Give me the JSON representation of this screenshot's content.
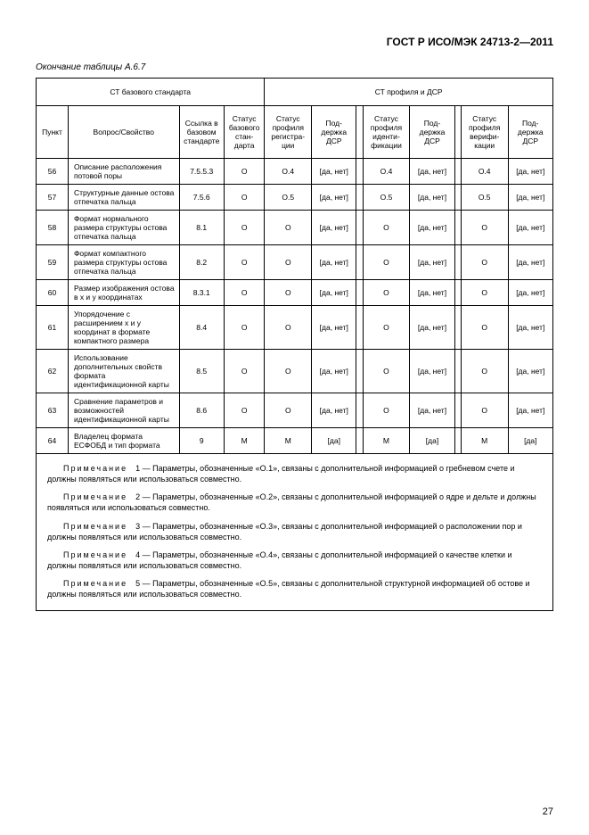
{
  "doc_title": "ГОСТ Р ИСО/МЭК 24713-2—2011",
  "caption": "Окончание таблицы А.6.7",
  "header_group_left": "СТ базового стандарта",
  "header_group_right": "СТ профиля и ДСР",
  "head": {
    "pt": "Пункт",
    "q": "Вопрос/Свойство",
    "ref": "Ссылка в базовом стан­дарте",
    "st": "Статус базо­вого стан­дарта",
    "p1": "Статус профиля регистра­ции",
    "p2": "Под­держка ДСР",
    "p3": "Статус профиля иденти­фикации",
    "p4": "Под­держка ДСР",
    "p5": "Статус профиля верифи­кации",
    "p6": "Под­держка ДСР"
  },
  "rows": [
    {
      "n": "56",
      "q": "Описание расположения потовой поры",
      "ref": "7.5.5.3",
      "st": "О",
      "p1": "О.4",
      "p2": "[да, нет]",
      "p3": "О.4",
      "p4": "[да, нет]",
      "p5": "О.4",
      "p6": "[да, нет]"
    },
    {
      "n": "57",
      "q": "Структурные данные остова отпечатка пальца",
      "ref": "7.5.6",
      "st": "О",
      "p1": "О.5",
      "p2": "[да, нет]",
      "p3": "О.5",
      "p4": "[да, нет]",
      "p5": "О.5",
      "p6": "[да, нет]"
    },
    {
      "n": "58",
      "q": "Формат нормального размера структуры остова отпечатка пальца",
      "ref": "8.1",
      "st": "О",
      "p1": "О",
      "p2": "[да, нет]",
      "p3": "О",
      "p4": "[да, нет]",
      "p5": "О",
      "p6": "[да, нет]"
    },
    {
      "n": "59",
      "q": "Формат компактного размера структуры остова отпечатка пальца",
      "ref": "8.2",
      "st": "О",
      "p1": "О",
      "p2": "[да, нет]",
      "p3": "О",
      "p4": "[да, нет]",
      "p5": "О",
      "p6": "[да, нет]"
    },
    {
      "n": "60",
      "q": "Размер изображения остова в x и y координатах",
      "ref": "8.3.1",
      "st": "О",
      "p1": "О",
      "p2": "[да, нет]",
      "p3": "О",
      "p4": "[да, нет]",
      "p5": "О",
      "p6": "[да, нет]"
    },
    {
      "n": "61",
      "q": "Упорядочение с расширением x и y координат в формате компактного размера",
      "ref": "8.4",
      "st": "О",
      "p1": "О",
      "p2": "[да, нет]",
      "p3": "О",
      "p4": "[да, нет]",
      "p5": "О",
      "p6": "[да, нет]"
    },
    {
      "n": "62",
      "q": "Использование дополнительных свойств формата идентификационной карты",
      "ref": "8.5",
      "st": "О",
      "p1": "О",
      "p2": "[да, нет]",
      "p3": "О",
      "p4": "[да, нет]",
      "p5": "О",
      "p6": "[да, нет]"
    },
    {
      "n": "63",
      "q": "Сравнение параметров и возможностей идентификационной карты",
      "ref": "8.6",
      "st": "О",
      "p1": "О",
      "p2": "[да, нет]",
      "p3": "О",
      "p4": "[да, нет]",
      "p5": "О",
      "p6": "[да, нет]"
    },
    {
      "n": "64",
      "q": "Владелец формата ЕСФОБД и тип формата",
      "ref": "9",
      "st": "М",
      "p1": "М",
      "p2": "[да]",
      "p3": "М",
      "p4": "[да]",
      "p5": "М",
      "p6": "[да]"
    }
  ],
  "notes_label": "Примечание",
  "notes": [
    "1 — Параметры, обозначенные «О.1», связаны с дополнительной информацией о гребневом счете и должны появляться или использоваться совместно.",
    "2 — Параметры, обозначенные «О.2», связаны с дополнительной информацией о ядре и дельте и должны появляться или использоваться совместно.",
    "3 — Параметры, обозначенные «О.3», связаны с дополнительной информацией о расположении пор и должны появляться или использоваться совместно.",
    "4 — Параметры, обозначенные «О.4», связаны с дополнительной информацией о качестве клетки и должны появляться или использоваться совместно.",
    "5 — Параметры, обозначенные «О.5», связаны с дополнительной структурной информацией об остове и должны появляться или использоваться совместно."
  ],
  "page_number": "27"
}
